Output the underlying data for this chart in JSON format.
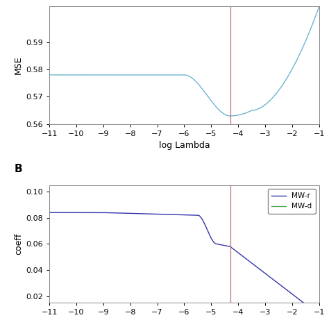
{
  "panel_A": {
    "title": "",
    "xlabel": "log Lambda",
    "ylabel": "MSE",
    "xlim": [
      -11,
      -1
    ],
    "ylim": [
      0.56,
      0.603
    ],
    "xticks": [
      -11,
      -10,
      -9,
      -8,
      -7,
      -6,
      -5,
      -4,
      -3,
      -2,
      -1
    ],
    "yticks": [
      0.56,
      0.57,
      0.58,
      0.59
    ],
    "line_color": "#6EB5D0",
    "vline_x": -4.3,
    "vline_color": "#C07070"
  },
  "panel_B": {
    "title": "B",
    "xlabel": "",
    "ylabel": "coeff",
    "xlim": [
      -11,
      -1
    ],
    "ylim": [
      0.015,
      0.105
    ],
    "xticks": [
      -11,
      -10,
      -9,
      -8,
      -7,
      -6,
      -5,
      -4,
      -3,
      -2,
      -1
    ],
    "yticks": [
      0.02,
      0.04,
      0.06,
      0.08,
      0.1
    ],
    "line_color_r": "#3333AA",
    "line_color_d": "#55AA55",
    "vline_x": -4.3,
    "vline_color": "#C07070",
    "legend_labels": [
      "MW-r",
      "MW-d"
    ]
  },
  "background_color": "#FFFFFF"
}
